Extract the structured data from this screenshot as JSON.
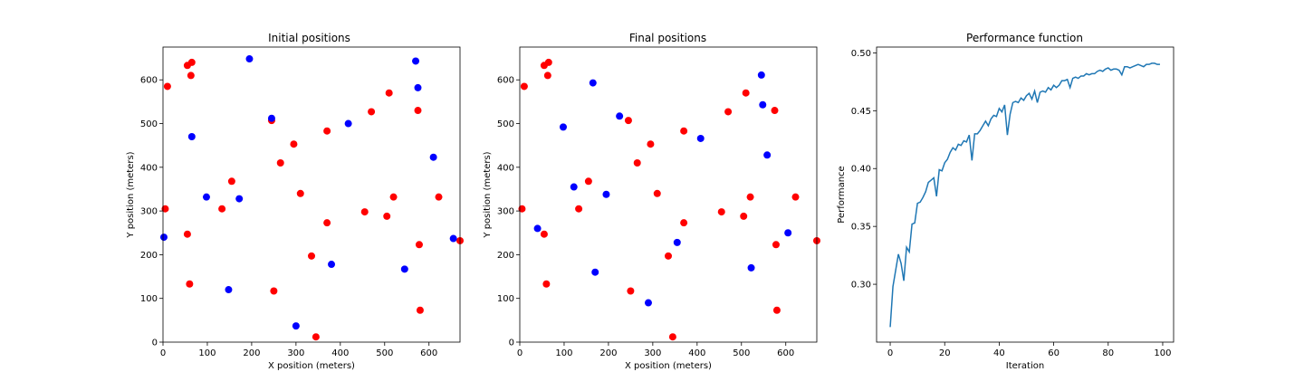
{
  "chart_data": [
    {
      "type": "scatter",
      "title": "Initial positions",
      "xlabel": "X position (meters)",
      "ylabel": "Y position (meters)",
      "xlim": [
        0,
        670
      ],
      "ylim": [
        0,
        675
      ],
      "xticks": [
        0,
        100,
        200,
        300,
        400,
        500,
        600
      ],
      "yticks": [
        0,
        100,
        200,
        300,
        400,
        500,
        600
      ],
      "grid": false,
      "series": [
        {
          "color": "#ff0000",
          "x": [
            10,
            55,
            65,
            63,
            245,
            295,
            370,
            265,
            155,
            5,
            133,
            310,
            55,
            60,
            250,
            335,
            345,
            370,
            455,
            470,
            505,
            510,
            520,
            575,
            578,
            622,
            580,
            670
          ],
          "y": [
            585,
            633,
            640,
            610,
            507,
            453,
            483,
            410,
            368,
            305,
            305,
            340,
            247,
            133,
            117,
            197,
            12,
            273,
            298,
            527,
            288,
            570,
            332,
            530,
            223,
            332,
            73,
            232
          ]
        },
        {
          "color": "#0000ff",
          "x": [
            195,
            245,
            65,
            98,
            172,
            2,
            148,
            300,
            380,
            418,
            545,
            570,
            575,
            610,
            655
          ],
          "y": [
            648,
            512,
            470,
            332,
            328,
            240,
            120,
            37,
            178,
            500,
            167,
            643,
            582,
            423,
            237
          ]
        }
      ]
    },
    {
      "type": "scatter",
      "title": "Final positions",
      "xlabel": "X position (meters)",
      "ylabel": "",
      "xlim": [
        0,
        670
      ],
      "ylim": [
        0,
        675
      ],
      "xticks": [
        0,
        100,
        200,
        300,
        400,
        500,
        600
      ],
      "yticks": [
        0,
        100,
        200,
        300,
        400,
        500,
        600
      ],
      "grid": false,
      "series": [
        {
          "color": "#ff0000",
          "x": [
            10,
            55,
            65,
            63,
            245,
            295,
            370,
            265,
            155,
            5,
            133,
            310,
            55,
            60,
            250,
            335,
            345,
            370,
            455,
            470,
            505,
            510,
            520,
            575,
            578,
            622,
            580,
            670
          ],
          "y": [
            585,
            633,
            640,
            610,
            507,
            453,
            483,
            410,
            368,
            305,
            305,
            340,
            247,
            133,
            117,
            197,
            12,
            273,
            298,
            527,
            288,
            570,
            332,
            530,
            223,
            332,
            73,
            232
          ]
        },
        {
          "color": "#0000ff",
          "x": [
            165,
            225,
            98,
            122,
            195,
            40,
            170,
            290,
            355,
            408,
            522,
            545,
            548,
            558,
            605
          ],
          "y": [
            593,
            517,
            492,
            355,
            338,
            260,
            160,
            90,
            228,
            466,
            170,
            611,
            543,
            428,
            250
          ]
        }
      ]
    },
    {
      "type": "line",
      "title": "Performance function",
      "xlabel": "Iteration",
      "ylabel": "Performance",
      "xlim": [
        -5,
        104
      ],
      "ylim": [
        0.25,
        0.505
      ],
      "xticks": [
        0,
        20,
        40,
        60,
        80,
        100
      ],
      "yticks": [
        "0.30",
        "0.35",
        "0.40",
        "0.45",
        "0.50"
      ],
      "grid": false,
      "series": [
        {
          "color": "#1f77b4",
          "x": [
            0,
            1,
            2,
            3,
            4,
            5,
            6,
            7,
            8,
            9,
            10,
            11,
            12,
            13,
            14,
            15,
            16,
            17,
            18,
            19,
            20,
            21,
            22,
            23,
            24,
            25,
            26,
            27,
            28,
            29,
            30,
            31,
            32,
            33,
            34,
            35,
            36,
            37,
            38,
            39,
            40,
            41,
            42,
            43,
            44,
            45,
            46,
            47,
            48,
            49,
            50,
            51,
            52,
            53,
            54,
            55,
            56,
            57,
            58,
            59,
            60,
            61,
            62,
            63,
            64,
            65,
            66,
            67,
            68,
            69,
            70,
            71,
            72,
            73,
            74,
            75,
            76,
            77,
            78,
            79,
            80,
            81,
            82,
            83,
            84,
            85,
            86,
            87,
            88,
            89,
            90,
            91,
            92,
            93,
            94,
            95,
            96,
            97,
            98,
            99
          ],
          "y": [
            0.263,
            0.298,
            0.312,
            0.326,
            0.318,
            0.303,
            0.332,
            0.328,
            0.352,
            0.353,
            0.37,
            0.371,
            0.375,
            0.38,
            0.388,
            0.39,
            0.392,
            0.376,
            0.399,
            0.398,
            0.405,
            0.408,
            0.414,
            0.418,
            0.416,
            0.421,
            0.42,
            0.424,
            0.423,
            0.429,
            0.407,
            0.43,
            0.43,
            0.433,
            0.437,
            0.441,
            0.437,
            0.443,
            0.446,
            0.445,
            0.452,
            0.449,
            0.455,
            0.429,
            0.447,
            0.457,
            0.458,
            0.457,
            0.461,
            0.459,
            0.463,
            0.465,
            0.46,
            0.467,
            0.457,
            0.466,
            0.467,
            0.466,
            0.47,
            0.468,
            0.472,
            0.47,
            0.472,
            0.476,
            0.476,
            0.477,
            0.47,
            0.478,
            0.479,
            0.478,
            0.48,
            0.48,
            0.482,
            0.481,
            0.482,
            0.482,
            0.484,
            0.485,
            0.484,
            0.486,
            0.487,
            0.485,
            0.486,
            0.486,
            0.485,
            0.481,
            0.488,
            0.488,
            0.487,
            0.488,
            0.489,
            0.49,
            0.489,
            0.488,
            0.49,
            0.49,
            0.491,
            0.491,
            0.49,
            0.49
          ]
        }
      ]
    }
  ]
}
